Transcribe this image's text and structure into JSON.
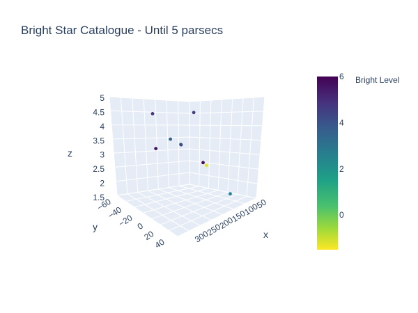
{
  "title": "Bright Star Catalogue - Until 5 parsecs",
  "chart_data": {
    "type": "scatter",
    "dimensions": "3d",
    "title": "Bright Star Catalogue - Until 5 parsecs",
    "xlabel": "x",
    "ylabel": "y",
    "zlabel": "z",
    "x_ticks": [
      "50",
      "100",
      "150",
      "200",
      "250",
      "300"
    ],
    "y_ticks": [
      "−60",
      "−40",
      "−20",
      "0",
      "20",
      "40"
    ],
    "z_ticks": [
      "1.5",
      "2",
      "2.5",
      "3",
      "3.5",
      "4",
      "4.5",
      "5"
    ],
    "xlim": [
      40,
      330
    ],
    "ylim": [
      -65,
      50
    ],
    "zlim": [
      1.5,
      5
    ],
    "colorbar": {
      "title": "Bright Level",
      "ticks": [
        "6",
        "4",
        "2",
        "0"
      ],
      "range": [
        -1.5,
        6
      ],
      "colorscale": "Viridis (reversed)"
    },
    "points": [
      {
        "x": 300,
        "y": -55,
        "z": 5.0,
        "c": 4.6
      },
      {
        "x": 120,
        "y": -45,
        "z": 4.8,
        "c": 4.8
      },
      {
        "x": 170,
        "y": -62,
        "z": 3.45,
        "c": 5.6
      },
      {
        "x": 110,
        "y": -10,
        "z": 3.7,
        "c": 3.6
      },
      {
        "x": 140,
        "y": -5,
        "z": 3.55,
        "c": 1.2
      },
      {
        "x": 130,
        "y": 0,
        "z": 3.5,
        "c": 4.2
      },
      {
        "x": 220,
        "y": 0,
        "z": 3.0,
        "c": 5.8
      },
      {
        "x": 200,
        "y": 15,
        "z": 2.85,
        "c": -1.2
      },
      {
        "x": 310,
        "y": 10,
        "z": 2.0,
        "c": 2.4
      }
    ]
  }
}
